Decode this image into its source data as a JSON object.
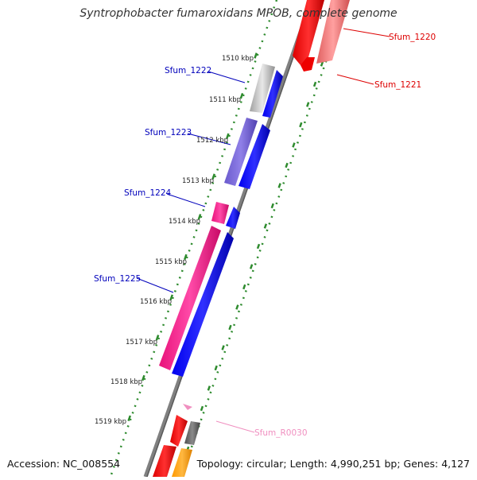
{
  "title": "Syntrophobacter fumaroxidans MPOB, complete genome",
  "footer": {
    "accession": "Accession: NC_008554",
    "summary": "Topology: circular; Length: 4,990,251 bp; Genes: 4,127"
  },
  "colors": {
    "backbone": "#808080",
    "tick": "#2e8b2e",
    "blue_gene": "#0000ee",
    "red_gene": "#ff0000",
    "red_label": "#dd0000",
    "blue_label": "#0000bb",
    "pink_label": "#f08fc0"
  },
  "ticks": [
    {
      "label": "1510 kbp",
      "pos": 1510
    },
    {
      "label": "1511 kbp",
      "pos": 1511
    },
    {
      "label": "1512 kbp",
      "pos": 1512
    },
    {
      "label": "1513 kbp",
      "pos": 1513
    },
    {
      "label": "1514 kbp",
      "pos": 1514
    },
    {
      "label": "1515 kbp",
      "pos": 1515
    },
    {
      "label": "1516 kbp",
      "pos": 1516
    },
    {
      "label": "1517 kbp",
      "pos": 1517
    },
    {
      "label": "1518 kbp",
      "pos": 1518
    },
    {
      "label": "1519 kbp",
      "pos": 1519
    }
  ],
  "genes": [
    {
      "name": "Sfum_1220",
      "label_color": "#dd0000"
    },
    {
      "name": "Sfum_1221",
      "label_color": "#dd0000"
    },
    {
      "name": "Sfum_1222",
      "label_color": "#0000bb"
    },
    {
      "name": "Sfum_1223",
      "label_color": "#0000bb"
    },
    {
      "name": "Sfum_1224",
      "label_color": "#0000bb"
    },
    {
      "name": "Sfum_1225",
      "label_color": "#0000bb"
    },
    {
      "name": "Sfum_R0030",
      "label_color": "#f08fc0"
    }
  ]
}
